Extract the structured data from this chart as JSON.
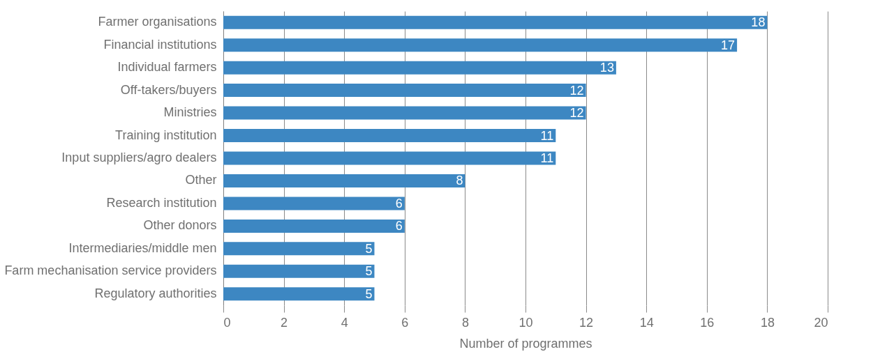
{
  "chart_data": {
    "type": "bar",
    "orientation": "horizontal",
    "xlabel": "Number of programmes",
    "categories": [
      "Farmer organisations",
      "Financial institutions",
      "Individual farmers",
      "Off-takers/buyers",
      "Ministries",
      "Training institution",
      "Input suppliers/agro dealers",
      "Other",
      "Research institution",
      "Other donors",
      "Intermediaries/middle men",
      "Farm mechanisation service providers",
      "Regulatory authorities"
    ],
    "values": [
      18,
      17,
      13,
      12,
      12,
      11,
      11,
      8,
      6,
      6,
      5,
      5,
      5
    ],
    "color": "#3d87c2",
    "xlim": [
      0,
      20
    ],
    "xticks": [
      0,
      2,
      4,
      6,
      8,
      10,
      12,
      14,
      16,
      18,
      20
    ],
    "grid": "x",
    "data_labels": true
  }
}
